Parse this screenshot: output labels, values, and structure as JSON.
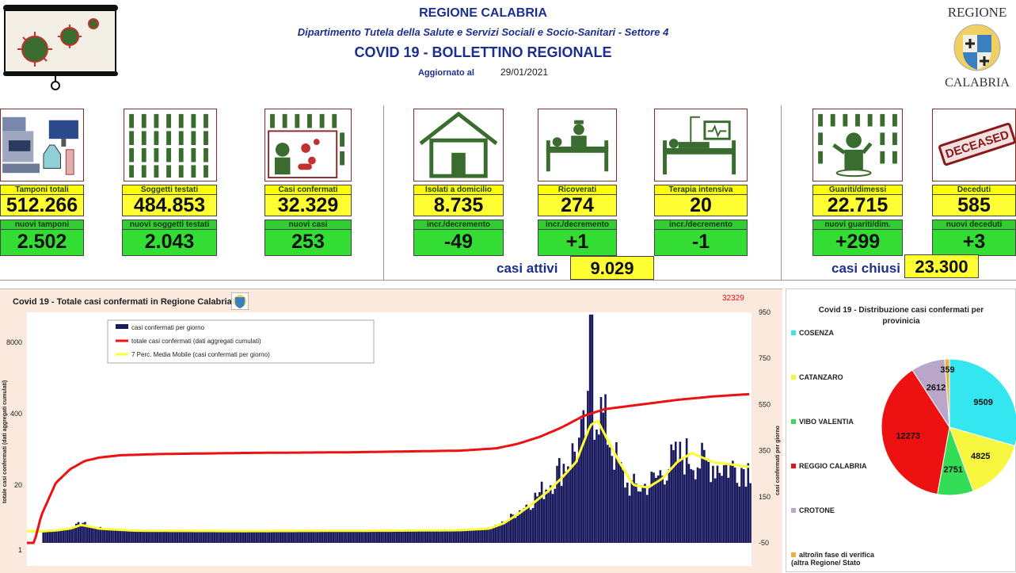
{
  "header": {
    "region": "REGIONE CALABRIA",
    "department": "Dipartimento Tutela della Salute e Servizi Sociali e Socio-Sanitari - Settore 4",
    "title": "COVID 19 - BOLLETTINO REGIONALE",
    "updated_label": "Aggiornato al",
    "updated_date": "29/01/2021",
    "logo_top": "REGIONE",
    "logo_bottom": "CALABRIA"
  },
  "stats": {
    "tamponi": {
      "label": "Tamponi totali",
      "value": "512.266",
      "sub_label": "nuovi tamponi",
      "sub_value": "2.502"
    },
    "soggetti": {
      "label": "Soggetti testati",
      "value": "484.853",
      "sub_label": "nuovi soggetti testati",
      "sub_value": "2.043"
    },
    "casi": {
      "label": "Casi confermati",
      "value": "32.329",
      "sub_label": "nuovi casi",
      "sub_value": "253"
    },
    "isolati": {
      "label": "Isolati a domicilio",
      "value": "8.735",
      "sub_label": "incr./decremento",
      "sub_value": "-49"
    },
    "ricoverati": {
      "label": "Ricoverati",
      "value": "274",
      "sub_label": "incr./decremento",
      "sub_value": "+1"
    },
    "terapia": {
      "label": "Terapia intensiva",
      "value": "20",
      "sub_label": "incr./decremento",
      "sub_value": "-1"
    },
    "guariti": {
      "label": "Guariti/dimessi",
      "value": "22.715",
      "sub_label": "nuovi guariti/dim.",
      "sub_value": "+299"
    },
    "deceduti": {
      "label": "Deceduti",
      "value": "585",
      "sub_label": "nuovi deceduti",
      "sub_value": "+3"
    },
    "attivi": {
      "label": "casi attivi",
      "value": "9.029"
    },
    "chiusi": {
      "label": "casi chiusi",
      "value": "23.300"
    },
    "deceased_stamp": "DECEASED"
  },
  "chart_data": [
    {
      "type": "bar",
      "title": "Covid 19 - Totale casi confermati in Regione Calabria",
      "ylabel_left": "totale casi confermati (dati aggregati cumulati)",
      "ylabel_right": "casi confermati per giorno",
      "left_ticks": [
        "8000",
        "400",
        "20",
        "1"
      ],
      "right_ticks": [
        "950",
        "750",
        "550",
        "350",
        "150",
        "-50"
      ],
      "right_ylim": [
        -50,
        950
      ],
      "last_total_label": "32329",
      "legend": [
        "casi confermati per giorno",
        "totale casi confermati (dati aggregati cumulati)",
        "7 Perc. Media Mobile (casi confermati per giorno)"
      ],
      "colors": {
        "bars": "#1a1a5e",
        "cumulative": "#ee1111",
        "moving_avg": "#ffff33"
      },
      "note": "",
      "daily_profile": [
        [
          0,
          0
        ],
        [
          0.02,
          0
        ],
        [
          0.04,
          5
        ],
        [
          0.06,
          15
        ],
        [
          0.075,
          40
        ],
        [
          0.085,
          20
        ],
        [
          0.1,
          15
        ],
        [
          0.12,
          10
        ],
        [
          0.15,
          4
        ],
        [
          0.2,
          2
        ],
        [
          0.3,
          1
        ],
        [
          0.4,
          2
        ],
        [
          0.5,
          3
        ],
        [
          0.55,
          3
        ],
        [
          0.6,
          5
        ],
        [
          0.64,
          12
        ],
        [
          0.66,
          40
        ],
        [
          0.68,
          90
        ],
        [
          0.7,
          140
        ],
        [
          0.72,
          200
        ],
        [
          0.74,
          280
        ],
        [
          0.75,
          320
        ],
        [
          0.76,
          360
        ],
        [
          0.77,
          420
        ],
        [
          0.775,
          480
        ],
        [
          0.78,
          520
        ],
        [
          0.79,
          540
        ],
        [
          0.8,
          460
        ],
        [
          0.81,
          350
        ],
        [
          0.82,
          260
        ],
        [
          0.83,
          200
        ],
        [
          0.85,
          190
        ],
        [
          0.87,
          230
        ],
        [
          0.89,
          300
        ],
        [
          0.91,
          330
        ],
        [
          0.93,
          300
        ],
        [
          0.95,
          290
        ],
        [
          0.97,
          280
        ],
        [
          1.0,
          275
        ]
      ],
      "moving_avg_profile": [
        [
          0,
          0
        ],
        [
          0.02,
          0
        ],
        [
          0.04,
          4
        ],
        [
          0.06,
          12
        ],
        [
          0.075,
          28
        ],
        [
          0.085,
          22
        ],
        [
          0.1,
          12
        ],
        [
          0.12,
          8
        ],
        [
          0.15,
          3
        ],
        [
          0.2,
          2
        ],
        [
          0.3,
          1
        ],
        [
          0.4,
          2
        ],
        [
          0.5,
          3
        ],
        [
          0.6,
          5
        ],
        [
          0.64,
          12
        ],
        [
          0.66,
          35
        ],
        [
          0.68,
          75
        ],
        [
          0.7,
          120
        ],
        [
          0.72,
          170
        ],
        [
          0.74,
          230
        ],
        [
          0.76,
          300
        ],
        [
          0.78,
          460
        ],
        [
          0.79,
          480
        ],
        [
          0.8,
          420
        ],
        [
          0.82,
          300
        ],
        [
          0.84,
          200
        ],
        [
          0.86,
          190
        ],
        [
          0.88,
          230
        ],
        [
          0.9,
          300
        ],
        [
          0.92,
          340
        ],
        [
          0.95,
          300
        ],
        [
          1.0,
          280
        ]
      ],
      "cumulative_profile": [
        [
          0,
          0
        ],
        [
          0.01,
          0
        ],
        [
          0.02,
          0.12
        ],
        [
          0.04,
          0.26
        ],
        [
          0.06,
          0.32
        ],
        [
          0.08,
          0.355
        ],
        [
          0.1,
          0.37
        ],
        [
          0.13,
          0.38
        ],
        [
          0.18,
          0.385
        ],
        [
          0.3,
          0.39
        ],
        [
          0.45,
          0.393
        ],
        [
          0.6,
          0.4
        ],
        [
          0.65,
          0.41
        ],
        [
          0.68,
          0.43
        ],
        [
          0.71,
          0.46
        ],
        [
          0.74,
          0.5
        ],
        [
          0.77,
          0.55
        ],
        [
          0.8,
          0.58
        ],
        [
          0.85,
          0.6
        ],
        [
          0.9,
          0.62
        ],
        [
          0.95,
          0.635
        ],
        [
          1.0,
          0.645
        ]
      ]
    },
    {
      "type": "pie",
      "title": "Covid 19 - Distribuzione casi confermati per provinicia",
      "categories": [
        "COSENZA",
        "CATANZARO",
        "VIBO VALENTIA",
        "REGGIO CALABRIA",
        "CROTONE",
        "altro/in fase di verifica (altra Regione/ Stato"
      ],
      "values": [
        9509,
        4825,
        2751,
        12273,
        2612,
        359
      ],
      "colors": [
        "#33e6f0",
        "#f7f740",
        "#33dd55",
        "#ee1111",
        "#b9a6c9",
        "#f0b040"
      ]
    }
  ]
}
